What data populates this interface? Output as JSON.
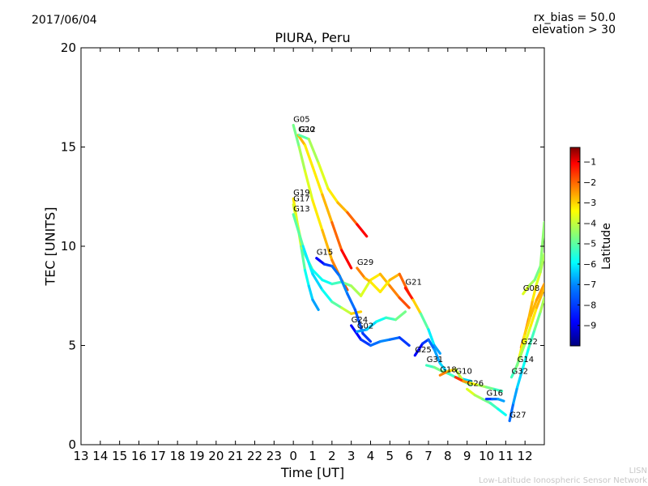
{
  "header": {
    "date": "2017/06/04",
    "rx_bias": "rx_bias = 50.0",
    "elevation": "elevation > 30"
  },
  "footer": {
    "org_short": "LISN",
    "org_long": "Low-Latitude Ionospheric Sensor Network"
  },
  "chart_data": {
    "type": "scatter",
    "title": "PIURA, Peru",
    "xlabel": "Time [UT]",
    "ylabel": "TEC [UNITS]",
    "x_ticks": [
      "13",
      "14",
      "15",
      "16",
      "17",
      "18",
      "19",
      "20",
      "21",
      "22",
      "23",
      "0",
      "1",
      "2",
      "3",
      "4",
      "5",
      "6",
      "7",
      "8",
      "9",
      "10",
      "11",
      "12"
    ],
    "xlim": [
      13,
      37
    ],
    "ylim": [
      0,
      20
    ],
    "y_ticks": [
      0,
      5,
      10,
      15,
      20
    ],
    "grid": false,
    "colorbar": {
      "label": "Latitude",
      "range": [
        -10,
        -0.3
      ],
      "ticks": [
        -1,
        -2,
        -3,
        -4,
        -5,
        -6,
        -7,
        -8,
        -9
      ],
      "colors": [
        "#00007f",
        "#0000ff",
        "#007fff",
        "#00ffff",
        "#7fff7f",
        "#ffff00",
        "#ff7f00",
        "#ff0000",
        "#7f0000"
      ]
    },
    "series": [
      {
        "name": "G05",
        "x": [
          24.0,
          24.3,
          24.6,
          25.0,
          25.5,
          26.0,
          26.5,
          26.8
        ],
        "y": [
          16.1,
          15.0,
          13.8,
          12.3,
          10.8,
          9.3,
          8.3,
          7.8
        ],
        "lat": [
          -5.5,
          -5.0,
          -4.5,
          -4.0,
          -3.5,
          -3.0,
          -2.5,
          -2.0
        ]
      },
      {
        "name": "G20",
        "x": [
          24.25,
          24.6,
          25.0,
          25.5,
          26.0,
          26.5,
          27.0
        ],
        "y": [
          15.6,
          15.1,
          14.0,
          12.6,
          11.2,
          9.8,
          8.9
        ],
        "lat": [
          -3.0,
          -3.5,
          -4.0,
          -3.5,
          -3.0,
          -2.0,
          -1.0
        ]
      },
      {
        "name": "G12",
        "x": [
          24.3,
          24.8,
          25.3,
          25.8,
          26.3,
          26.8,
          27.3,
          27.8
        ],
        "y": [
          15.6,
          15.4,
          14.2,
          12.9,
          12.2,
          11.7,
          11.1,
          10.5
        ],
        "lat": [
          -6.0,
          -5.0,
          -4.5,
          -4.0,
          -3.5,
          -3.0,
          -2.0,
          -1.0
        ]
      },
      {
        "name": "G19",
        "x": [
          24.0,
          24.2,
          24.4,
          24.6,
          24.8,
          25.0,
          25.3
        ],
        "y": [
          12.4,
          11.2,
          10.0,
          8.8,
          8.0,
          7.3,
          6.8
        ],
        "lat": [
          -3.5,
          -4.0,
          -5.0,
          -6.0,
          -6.5,
          -7.0,
          -7.5
        ]
      },
      {
        "name": "G17",
        "x": [
          24.0,
          24.5,
          25.0,
          25.5,
          26.0,
          26.5,
          27.0,
          27.5,
          28.0,
          28.5,
          29.0,
          29.5,
          30.0
        ],
        "y": [
          12.1,
          9.8,
          8.8,
          8.3,
          8.1,
          8.2,
          8.0,
          7.5,
          8.3,
          8.6,
          8.0,
          7.4,
          6.9
        ],
        "lat": [
          -3.5,
          -5.0,
          -6.0,
          -6.5,
          -6.0,
          -5.5,
          -5.0,
          -4.5,
          -4.0,
          -3.5,
          -3.0,
          -2.5,
          -2.0
        ]
      },
      {
        "name": "G13",
        "x": [
          24.0,
          24.5,
          25.0,
          25.5,
          26.0,
          26.5,
          27.0,
          27.5
        ],
        "y": [
          11.6,
          10.0,
          8.6,
          7.8,
          7.2,
          6.9,
          6.6,
          6.7
        ],
        "lat": [
          -5.0,
          -6.0,
          -7.0,
          -6.5,
          -6.0,
          -5.0,
          -4.0,
          -3.0
        ]
      },
      {
        "name": "G15",
        "x": [
          25.2,
          25.6,
          26.0,
          26.4,
          26.8,
          27.2,
          27.6,
          28.0
        ],
        "y": [
          9.4,
          9.1,
          9.0,
          8.5,
          7.6,
          6.8,
          5.6,
          5.2
        ],
        "lat": [
          -9.0,
          -8.5,
          -8.0,
          -7.5,
          -7.5,
          -8.0,
          -8.0,
          -8.5
        ]
      },
      {
        "name": "G29",
        "x": [
          27.3,
          27.7,
          28.0,
          28.5,
          29.0,
          29.5,
          30.0
        ],
        "y": [
          8.9,
          8.4,
          8.2,
          7.7,
          8.3,
          8.6,
          7.6
        ],
        "lat": [
          -2.5,
          -3.0,
          -3.5,
          -4.0,
          -3.5,
          -3.0,
          -2.0
        ]
      },
      {
        "name": "G24",
        "x": [
          27.0,
          27.5,
          28.0,
          28.5,
          29.0,
          29.5,
          30.0
        ],
        "y": [
          6.0,
          5.3,
          5.0,
          5.2,
          5.3,
          5.4,
          5.0
        ],
        "lat": [
          -9.0,
          -8.5,
          -8.0,
          -7.5,
          -7.5,
          -8.0,
          -8.5
        ]
      },
      {
        "name": "G02",
        "x": [
          27.3,
          27.8,
          28.3,
          28.8,
          29.3,
          29.8
        ],
        "y": [
          5.7,
          5.8,
          6.2,
          6.4,
          6.3,
          6.7
        ],
        "lat": [
          -7.5,
          -7.0,
          -6.5,
          -6.0,
          -5.5,
          -5.0
        ]
      },
      {
        "name": "G21",
        "x": [
          29.8,
          30.2,
          30.6,
          31.0,
          31.3,
          31.6
        ],
        "y": [
          7.9,
          7.3,
          6.6,
          5.8,
          5.0,
          4.6
        ],
        "lat": [
          -1.5,
          -2.0,
          -5.0,
          -6.0,
          -7.0,
          -7.5
        ]
      },
      {
        "name": "G25",
        "x": [
          30.3,
          30.7,
          31.0,
          31.3,
          31.6,
          32.0
        ],
        "y": [
          4.5,
          5.1,
          5.3,
          4.8,
          4.1,
          3.6
        ],
        "lat": [
          -9.0,
          -8.5,
          -8.0,
          -7.5,
          -7.0,
          -6.5
        ]
      },
      {
        "name": "G31",
        "x": [
          30.9,
          31.3,
          31.7,
          32.0,
          32.4,
          32.8,
          33.2
        ],
        "y": [
          4.0,
          3.9,
          3.7,
          3.6,
          3.4,
          3.3,
          3.2
        ],
        "lat": [
          -6.0,
          -5.5,
          -5.0,
          -5.5,
          -6.0,
          -6.5,
          -7.0
        ]
      },
      {
        "name": "G18",
        "x": [
          31.6,
          32.0,
          32.4,
          32.8,
          33.2
        ],
        "y": [
          3.5,
          3.7,
          3.8,
          3.2,
          3.0
        ],
        "lat": [
          -2.5,
          -3.0,
          -4.0,
          -5.0,
          -5.5
        ]
      },
      {
        "name": "G10",
        "x": [
          32.4,
          32.8,
          33.2,
          33.6,
          34.0,
          34.4,
          34.8
        ],
        "y": [
          3.4,
          3.2,
          3.1,
          3.0,
          2.9,
          2.8,
          2.7
        ],
        "lat": [
          -1.5,
          -2.5,
          -3.5,
          -4.5,
          -5.0,
          -5.5,
          -6.0
        ]
      },
      {
        "name": "G26",
        "x": [
          33.0,
          33.4,
          33.8,
          34.2,
          34.6,
          35.0
        ],
        "y": [
          2.8,
          2.5,
          2.3,
          2.1,
          1.8,
          1.5
        ],
        "lat": [
          -4.0,
          -4.5,
          -5.0,
          -5.5,
          -6.0,
          -6.5
        ]
      },
      {
        "name": "G16",
        "x": [
          34.0,
          34.3,
          34.6,
          34.9
        ],
        "y": [
          2.3,
          2.3,
          2.3,
          2.2
        ],
        "lat": [
          -8.5,
          -8.0,
          -7.5,
          -7.0
        ]
      },
      {
        "name": "G08",
        "x": [
          35.9,
          36.2,
          36.5,
          36.8,
          37.0
        ],
        "y": [
          7.6,
          8.0,
          8.3,
          9.0,
          11.2
        ],
        "lat": [
          -4.0,
          -4.5,
          -5.0,
          -5.5,
          -4.5
        ]
      },
      {
        "name": "G22",
        "x": [
          35.8,
          36.0,
          36.2,
          36.4,
          36.6,
          36.8,
          37.0
        ],
        "y": [
          4.9,
          5.6,
          6.4,
          7.3,
          8.1,
          8.7,
          9.6
        ],
        "lat": [
          -2.0,
          -2.5,
          -3.0,
          -3.5,
          -4.0,
          -4.5,
          -5.0
        ]
      },
      {
        "name": "G14",
        "x": [
          35.6,
          35.8,
          36.0,
          36.3,
          36.6,
          37.0
        ],
        "y": [
          4.0,
          4.8,
          5.6,
          6.5,
          7.3,
          8.1
        ],
        "lat": [
          -4.0,
          -4.0,
          -3.5,
          -3.5,
          -3.0,
          -3.0
        ]
      },
      {
        "name": "G32",
        "x": [
          35.3,
          35.5,
          35.7,
          36.0,
          36.3,
          36.6,
          37.0
        ],
        "y": [
          3.4,
          3.8,
          4.3,
          5.1,
          6.0,
          6.9,
          7.9
        ],
        "lat": [
          -6.0,
          -5.5,
          -5.0,
          -4.5,
          -4.0,
          -3.5,
          -3.0
        ]
      },
      {
        "name": "G27",
        "x": [
          35.2,
          35.4,
          35.6,
          35.9,
          36.2,
          36.5,
          36.8,
          37.0
        ],
        "y": [
          1.2,
          2.1,
          2.9,
          3.9,
          4.9,
          5.8,
          6.7,
          7.4
        ],
        "lat": [
          -8.0,
          -7.5,
          -7.0,
          -6.5,
          -6.0,
          -5.5,
          -5.0,
          -4.5
        ]
      }
    ]
  }
}
